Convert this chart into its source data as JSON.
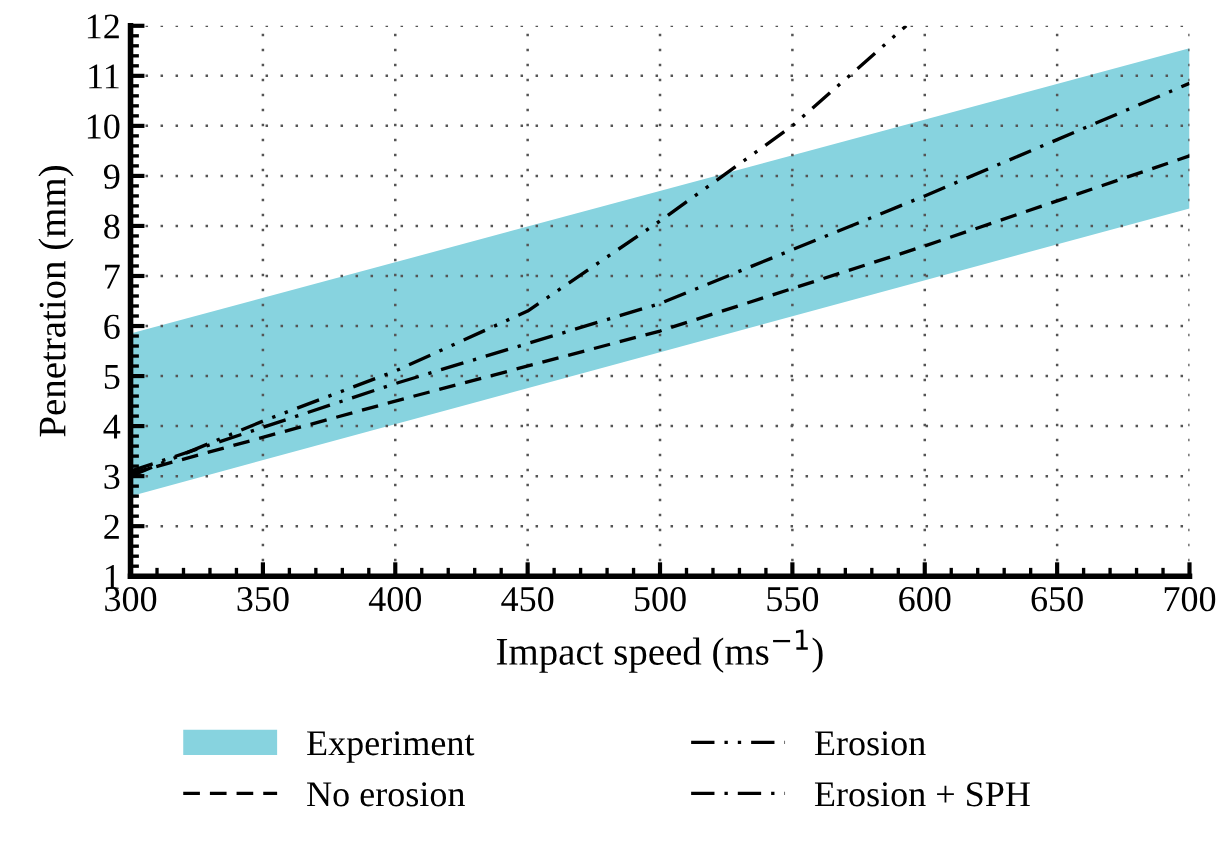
{
  "chart_data": {
    "type": "line",
    "xlabel": "Impact speed (ms$^{−1}$)",
    "ylabel": "Penetration (mm)",
    "xlim": [
      300,
      700
    ],
    "ylim": [
      1,
      12
    ],
    "xticks": [
      300,
      350,
      400,
      450,
      500,
      550,
      600,
      650,
      700
    ],
    "yticks": [
      1,
      2,
      3,
      4,
      5,
      6,
      7,
      8,
      9,
      10,
      11,
      12
    ],
    "grid": true,
    "legend": "bottom",
    "series": [
      {
        "name": "Experiment",
        "type": "area",
        "color": "#87d3df",
        "x": [
          300,
          700
        ],
        "values": [
          null,
          null
        ],
        "lower": [
          2.6,
          8.35
        ],
        "upper": [
          5.85,
          11.55
        ]
      },
      {
        "name": "No erosion",
        "color": "#000000",
        "line_style": "dashed",
        "x": [
          300,
          400,
          500,
          600,
          700
        ],
        "values": [
          3.05,
          4.5,
          5.9,
          7.6,
          9.4
        ]
      },
      {
        "name": "Erosion",
        "color": "#000000",
        "line_style": "dashdotdot",
        "x": [
          300,
          350,
          400,
          450,
          500,
          550,
          593
        ],
        "values": [
          3.0,
          4.1,
          5.1,
          6.3,
          8.1,
          10.0,
          12.0
        ]
      },
      {
        "name": "Erosion + SPH",
        "color": "#000000",
        "line_style": "dashdot",
        "x": [
          300,
          400,
          500,
          600,
          700
        ],
        "values": [
          3.1,
          4.85,
          6.45,
          8.6,
          10.85
        ]
      }
    ]
  }
}
